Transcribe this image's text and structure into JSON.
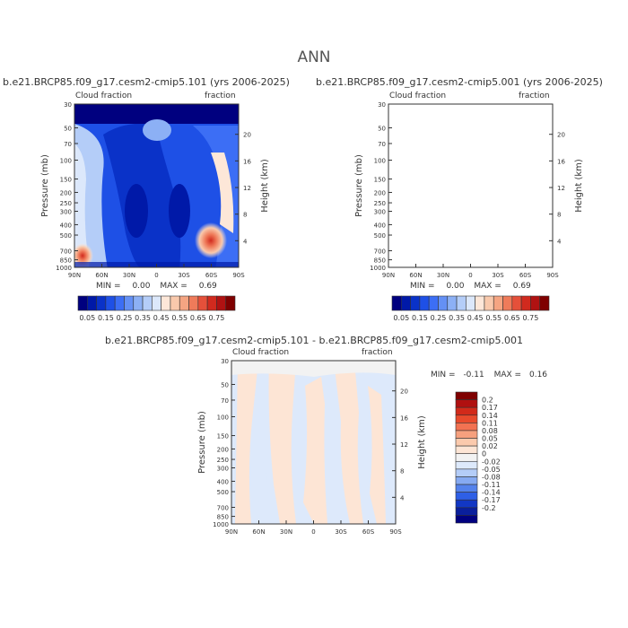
{
  "page_title": "ANN",
  "panels": [
    {
      "title": "b.e21.BRCP85.f09_g17.cesm2-cmip5.101 (yrs 2006-2025)",
      "left_label": "Cloud fraction",
      "right_label": "fraction",
      "min_label": "MIN =",
      "min_value": "0.00",
      "max_label": "MAX =",
      "max_value": "0.69"
    },
    {
      "title": "b.e21.BRCP85.f09_g17.cesm2-cmip5.001 (yrs 2006-2025)",
      "left_label": "Cloud fraction",
      "right_label": "fraction",
      "min_label": "MIN =",
      "min_value": "0.00",
      "max_label": "MAX =",
      "max_value": "0.69"
    },
    {
      "title": "b.e21.BRCP85.f09_g17.cesm2-cmip5.101 - b.e21.BRCP85.f09_g17.cesm2-cmip5.001",
      "left_label": "Cloud fraction",
      "right_label": "fraction",
      "min_label": "MIN =",
      "min_value": "-0.11",
      "max_label": "MAX =",
      "max_value": "0.16"
    }
  ],
  "axes": {
    "ylabel": "Pressure (mb)",
    "y2label": "Height (km)",
    "x_ticks": [
      "90N",
      "60N",
      "30N",
      "0",
      "30S",
      "60S",
      "90S"
    ],
    "pressure_ticks": [
      "30",
      "50",
      "70",
      "100",
      "150",
      "200",
      "250",
      "300",
      "400",
      "500",
      "700",
      "850",
      "1000"
    ],
    "pressure_values": [
      30,
      50,
      70,
      100,
      150,
      200,
      250,
      300,
      400,
      500,
      700,
      850,
      1000
    ],
    "height_ticks": [
      "20",
      "16",
      "12",
      "8",
      "4"
    ],
    "height_values": [
      20,
      16,
      12,
      8,
      4
    ]
  },
  "colorbar_main": {
    "labels": [
      "0.05",
      "0.15",
      "0.25",
      "0.35",
      "0.45",
      "0.55",
      "0.65",
      "0.75"
    ],
    "colors": [
      "#00007f",
      "#0019a8",
      "#0a32c8",
      "#1e50e6",
      "#3c6ef5",
      "#6490f5",
      "#8cb0f5",
      "#b4cdf8",
      "#dce8fb",
      "#fde7d8",
      "#f9c9ac",
      "#f5a582",
      "#ef7b5a",
      "#e5503a",
      "#d12a1e",
      "#b01212",
      "#7f0000"
    ]
  },
  "colorbar_diff": {
    "labels": [
      "0.2",
      "0.17",
      "0.14",
      "0.11",
      "0.08",
      "0.05",
      "0.02",
      "0",
      "-0.02",
      "-0.05",
      "-0.08",
      "-0.11",
      "-0.14",
      "-0.17",
      "-0.2"
    ],
    "colors": [
      "#7f0000",
      "#b01010",
      "#d22a1a",
      "#e84a2c",
      "#f27252",
      "#f6a07e",
      "#fbcaad",
      "#fde5d5",
      "#f2f2f2",
      "#dde9fb",
      "#b4cdf8",
      "#86aaf2",
      "#5482ec",
      "#2e5fe6",
      "#1237c4",
      "#0a1f9c",
      "#00007f"
    ]
  },
  "chart_data": [
    {
      "type": "heatmap",
      "title": "b.e21.BRCP85.f09_g17.cesm2-cmip5.101 (yrs 2006-2025)",
      "xlabel": "",
      "ylabel": "Pressure (mb)",
      "x": [
        "90N",
        "60N",
        "30N",
        "0",
        "30S",
        "60S",
        "90S"
      ],
      "ylim": [
        1000,
        30
      ],
      "min": 0.0,
      "max": 0.69
    },
    {
      "type": "heatmap",
      "title": "b.e21.BRCP85.f09_g17.cesm2-cmip5.001 (yrs 2006-2025)",
      "xlabel": "",
      "ylabel": "Pressure (mb)",
      "x": [
        "90N",
        "60N",
        "30N",
        "0",
        "30S",
        "60S",
        "90S"
      ],
      "ylim": [
        1000,
        30
      ],
      "min": 0.0,
      "max": 0.69
    },
    {
      "type": "heatmap",
      "title": "b.e21.BRCP85.f09_g17.cesm2-cmip5.101 - b.e21.BRCP85.f09_g17.cesm2-cmip5.001",
      "xlabel": "",
      "ylabel": "Pressure (mb)",
      "x": [
        "90N",
        "60N",
        "30N",
        "0",
        "30S",
        "60S",
        "90S"
      ],
      "ylim": [
        1000,
        30
      ],
      "min": -0.11,
      "max": 0.16
    }
  ]
}
